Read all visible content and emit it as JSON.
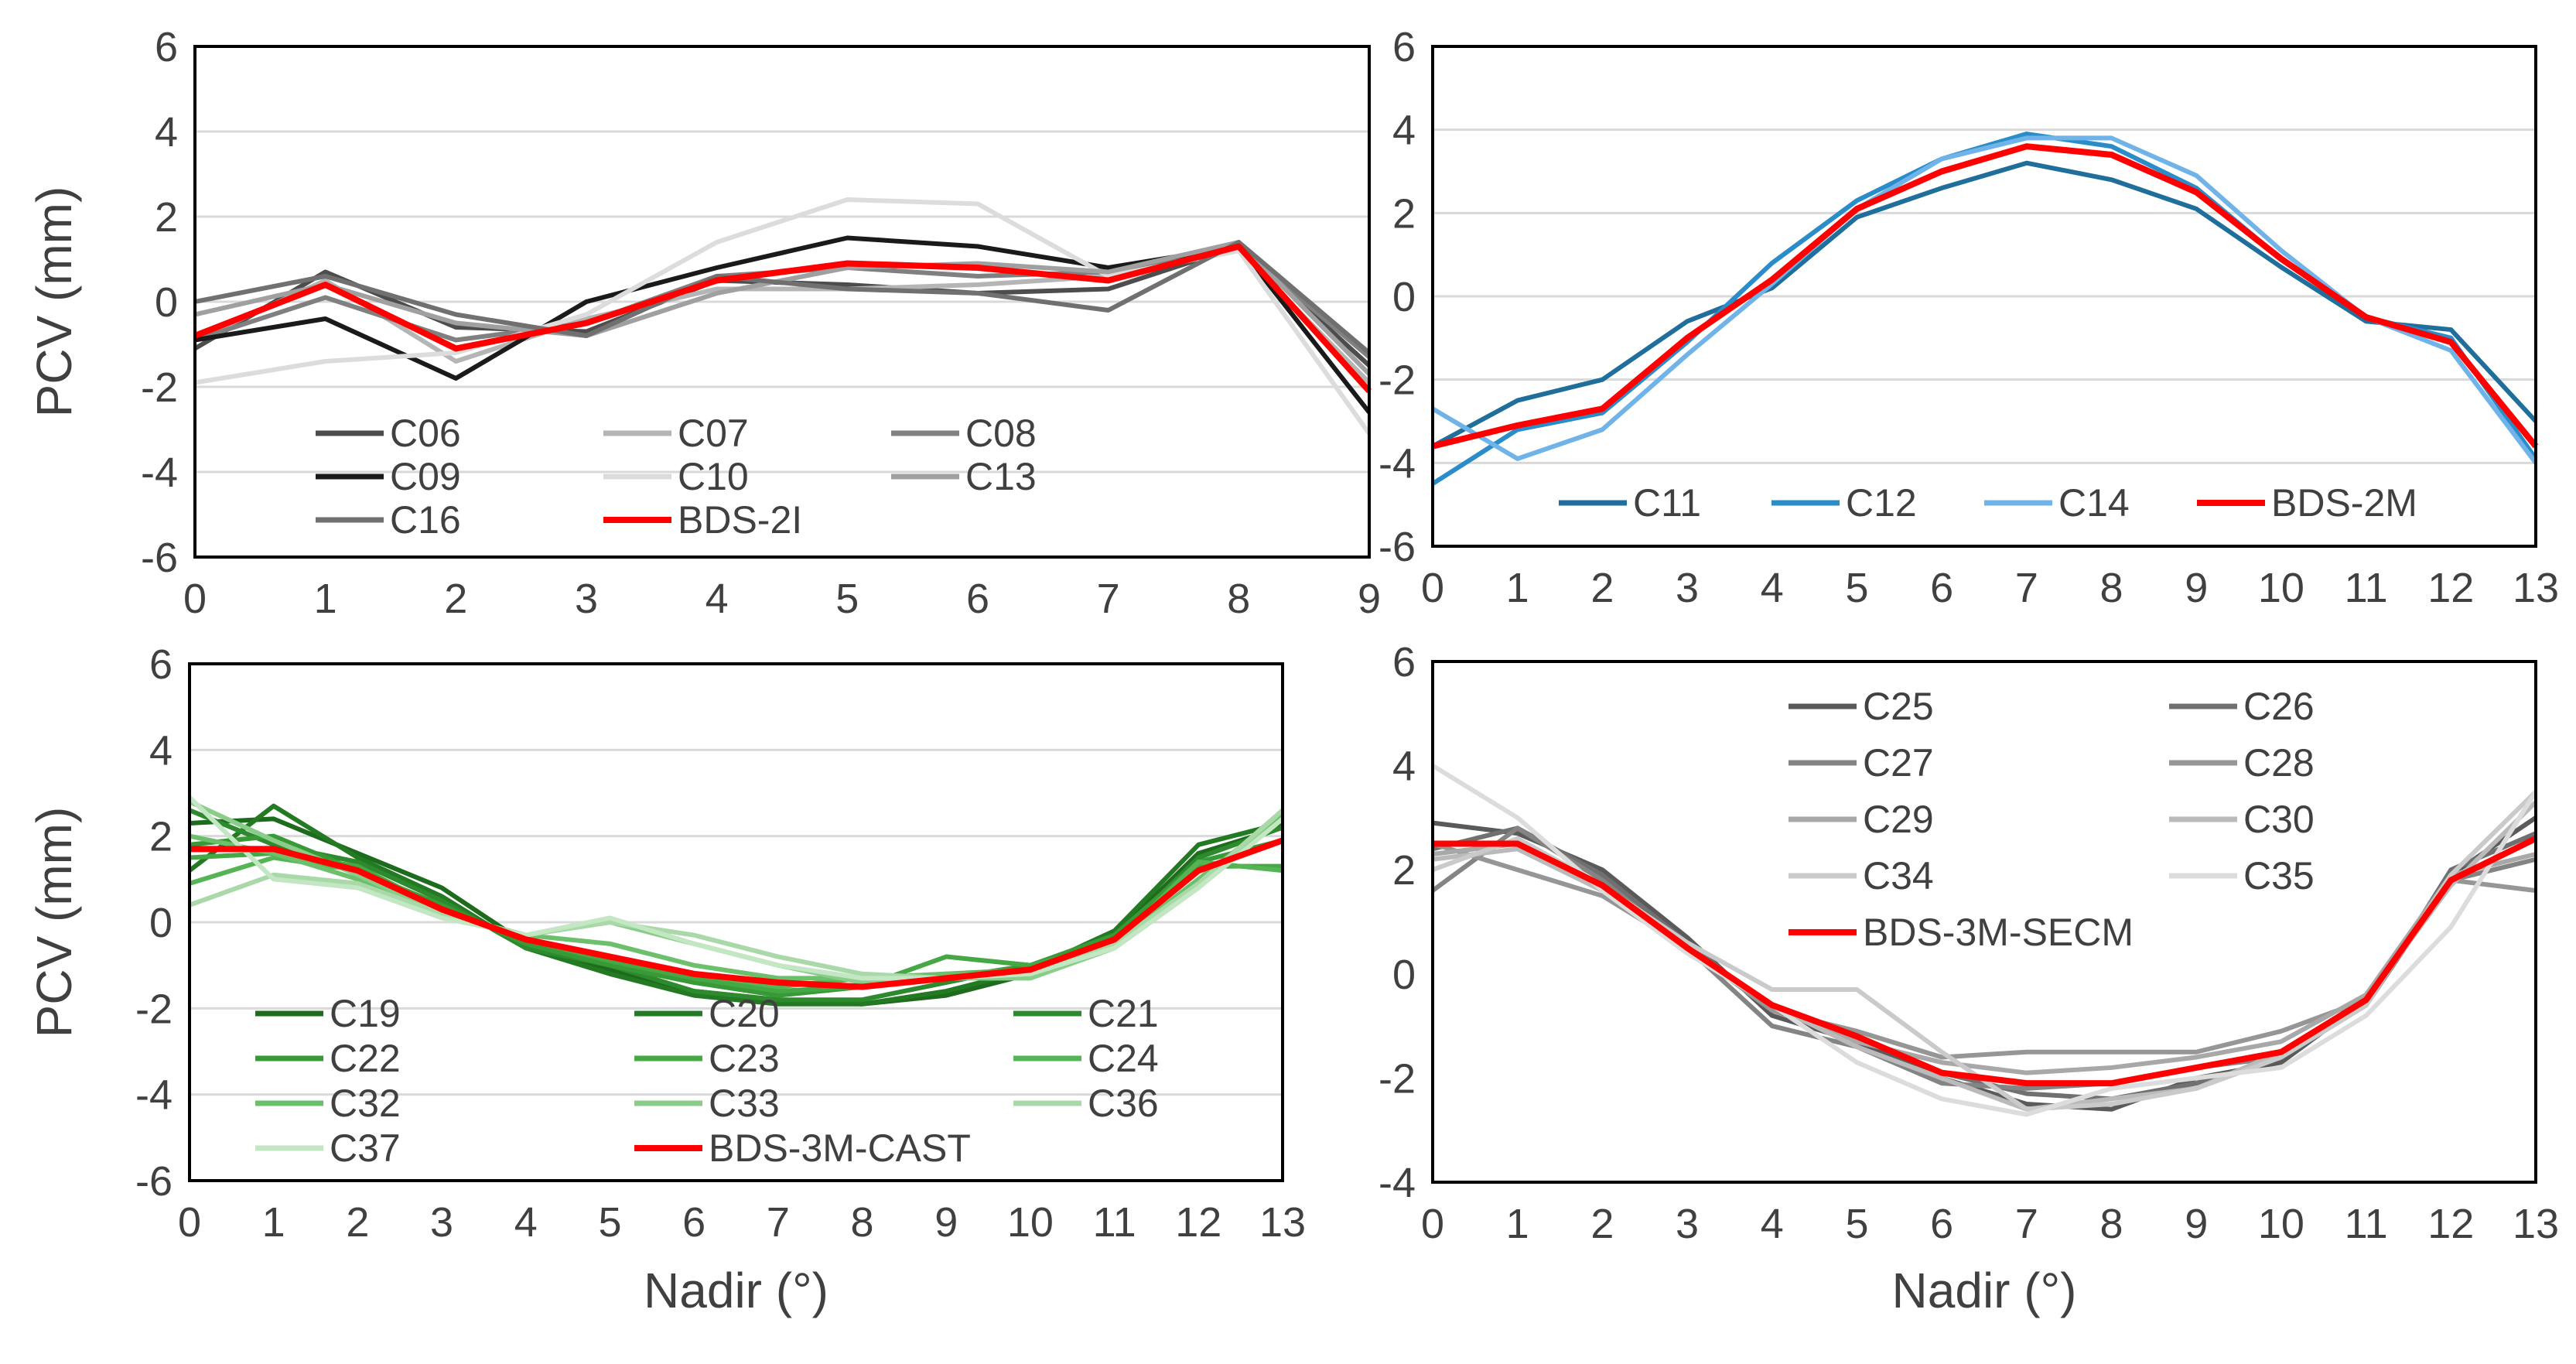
{
  "chart_data": [
    {
      "type": "line",
      "id": "bds2i",
      "ylabel": "PCV (mm)",
      "xlabel": "",
      "ylim": [
        -6,
        6
      ],
      "yticks": [
        -6,
        -4,
        -2,
        0,
        2,
        4,
        6
      ],
      "xlim": [
        0,
        9
      ],
      "xticks": [
        0,
        1,
        2,
        3,
        4,
        5,
        6,
        7,
        8,
        9
      ],
      "grid": true,
      "series": [
        {
          "name": "C06",
          "color": "#4d4d4d",
          "values": [
            -1.1,
            0.7,
            -0.6,
            -0.7,
            0.5,
            0.4,
            0.2,
            0.3,
            1.3,
            -1.5
          ]
        },
        {
          "name": "C07",
          "color": "#b5b5b5",
          "values": [
            -0.9,
            0.5,
            -1.4,
            -0.4,
            0.3,
            0.3,
            0.4,
            0.6,
            1.2,
            -1.9
          ]
        },
        {
          "name": "C08",
          "color": "#808080",
          "values": [
            -0.9,
            0.1,
            -0.9,
            -0.5,
            0.6,
            0.8,
            0.6,
            0.7,
            1.3,
            -1.3
          ]
        },
        {
          "name": "C09",
          "color": "#1a1a1a",
          "values": [
            -0.9,
            -0.4,
            -1.8,
            0.0,
            0.8,
            1.5,
            1.3,
            0.8,
            1.3,
            -2.6
          ]
        },
        {
          "name": "C10",
          "color": "#dcdcdc",
          "values": [
            -1.9,
            -1.4,
            -1.2,
            -0.3,
            1.4,
            2.4,
            2.3,
            0.6,
            1.2,
            -3.1
          ]
        },
        {
          "name": "C13",
          "color": "#a0a0a0",
          "values": [
            -0.3,
            0.4,
            -0.5,
            -0.8,
            0.2,
            0.8,
            0.9,
            0.7,
            1.4,
            -1.7
          ]
        },
        {
          "name": "C16",
          "color": "#707070",
          "values": [
            0.0,
            0.6,
            -0.3,
            -0.8,
            0.6,
            0.3,
            0.2,
            -0.2,
            1.4,
            -1.2
          ]
        },
        {
          "name": "BDS-2I",
          "color": "#ff0000",
          "values": [
            -0.8,
            0.4,
            -1.1,
            -0.5,
            0.5,
            0.9,
            0.8,
            0.5,
            1.3,
            -2.1
          ]
        }
      ]
    },
    {
      "type": "line",
      "id": "bds2m",
      "ylabel": "",
      "xlabel": "",
      "ylim": [
        -6,
        6
      ],
      "yticks": [
        -6,
        -4,
        -2,
        0,
        2,
        4,
        6
      ],
      "xlim": [
        0,
        13
      ],
      "xticks": [
        0,
        1,
        2,
        3,
        4,
        5,
        6,
        7,
        8,
        9,
        10,
        11,
        12,
        13
      ],
      "grid": true,
      "series": [
        {
          "name": "C11",
          "color": "#1f6e9c",
          "values": [
            -3.6,
            -2.5,
            -2.0,
            -0.6,
            0.2,
            1.9,
            2.6,
            3.2,
            2.8,
            2.1,
            0.7,
            -0.6,
            -0.8,
            -3.0
          ]
        },
        {
          "name": "C12",
          "color": "#2a8cc8",
          "values": [
            -4.5,
            -3.2,
            -2.8,
            -1.1,
            0.8,
            2.3,
            3.3,
            3.9,
            3.6,
            2.6,
            0.9,
            -0.5,
            -1.0,
            -3.9
          ]
        },
        {
          "name": "C14",
          "color": "#6fb3e8",
          "values": [
            -2.7,
            -3.9,
            -3.2,
            -1.4,
            0.3,
            2.1,
            3.3,
            3.8,
            3.8,
            2.9,
            1.1,
            -0.5,
            -1.3,
            -4.0
          ]
        },
        {
          "name": "BDS-2M",
          "color": "#ff0000",
          "values": [
            -3.6,
            -3.1,
            -2.7,
            -1.0,
            0.4,
            2.1,
            3.0,
            3.6,
            3.4,
            2.5,
            0.9,
            -0.5,
            -1.1,
            -3.6
          ]
        }
      ]
    },
    {
      "type": "line",
      "id": "bds3m-cast",
      "ylabel": "PCV (mm)",
      "xlabel": "Nadir (°)",
      "ylim": [
        -6,
        6
      ],
      "yticks": [
        -6,
        -4,
        -2,
        0,
        2,
        4,
        6
      ],
      "xlim": [
        0,
        13
      ],
      "xticks": [
        0,
        1,
        2,
        3,
        4,
        5,
        6,
        7,
        8,
        9,
        10,
        11,
        12,
        13
      ],
      "grid": true,
      "series": [
        {
          "name": "C19",
          "color": "#1d6b1d",
          "values": [
            2.3,
            2.4,
            1.6,
            0.8,
            -0.5,
            -1.1,
            -1.6,
            -1.8,
            -1.9,
            -1.7,
            -1.2,
            -0.3,
            1.6,
            2.2
          ]
        },
        {
          "name": "C20",
          "color": "#237a23",
          "values": [
            1.2,
            2.7,
            1.5,
            0.6,
            -0.6,
            -1.2,
            -1.7,
            -1.9,
            -1.9,
            -1.6,
            -1.1,
            -0.2,
            1.8,
            2.3
          ]
        },
        {
          "name": "C21",
          "color": "#2d8a2d",
          "values": [
            2.6,
            1.8,
            1.4,
            0.5,
            -0.6,
            -1.0,
            -1.6,
            -1.8,
            -1.8,
            -1.4,
            -1.0,
            -0.4,
            1.5,
            2.2
          ]
        },
        {
          "name": "C22",
          "color": "#379a37",
          "values": [
            1.8,
            2.0,
            1.2,
            0.4,
            -0.5,
            -1.0,
            -1.4,
            -1.7,
            -1.5,
            -1.3,
            -1.0,
            -0.3,
            1.4,
            1.9
          ]
        },
        {
          "name": "C23",
          "color": "#45a845",
          "values": [
            1.5,
            1.6,
            1.3,
            0.3,
            -0.4,
            -0.9,
            -1.3,
            -1.6,
            -1.5,
            -0.8,
            -1.0,
            -0.5,
            1.3,
            1.3
          ]
        },
        {
          "name": "C24",
          "color": "#55b555",
          "values": [
            0.9,
            1.5,
            1.2,
            0.3,
            -0.4,
            -0.8,
            -1.2,
            -1.5,
            -1.3,
            -1.2,
            -1.1,
            -0.5,
            1.4,
            1.2
          ]
        },
        {
          "name": "C32",
          "color": "#6cc06c",
          "values": [
            2.0,
            1.6,
            1.0,
            0.2,
            -0.3,
            -0.5,
            -1.0,
            -1.3,
            -1.3,
            -1.2,
            -1.2,
            -0.5,
            1.0,
            2.5
          ]
        },
        {
          "name": "C33",
          "color": "#8acc8a",
          "values": [
            2.8,
            1.9,
            1.1,
            0.2,
            -0.3,
            0.0,
            -0.5,
            -1.0,
            -1.4,
            -1.3,
            -1.3,
            -0.6,
            0.8,
            2.6
          ]
        },
        {
          "name": "C36",
          "color": "#a9d9a9",
          "values": [
            0.4,
            1.1,
            0.9,
            0.2,
            -0.3,
            0.0,
            -0.3,
            -0.8,
            -1.2,
            -1.3,
            -1.2,
            -0.5,
            0.9,
            2.6
          ]
        },
        {
          "name": "C37",
          "color": "#c3e6c3",
          "values": [
            2.9,
            1.0,
            0.8,
            0.1,
            -0.3,
            0.1,
            -0.5,
            -1.0,
            -1.3,
            -1.3,
            -1.2,
            -0.6,
            0.8,
            2.4
          ]
        },
        {
          "name": "BDS-3M-CAST",
          "color": "#ff0000",
          "values": [
            1.7,
            1.7,
            1.2,
            0.3,
            -0.4,
            -0.8,
            -1.2,
            -1.4,
            -1.5,
            -1.3,
            -1.1,
            -0.4,
            1.2,
            1.9
          ]
        }
      ]
    },
    {
      "type": "line",
      "id": "bds3m-secm",
      "ylabel": "",
      "xlabel": "Nadir (°)",
      "ylim": [
        -4,
        6
      ],
      "yticks": [
        -4,
        -2,
        0,
        2,
        4,
        6
      ],
      "xlim": [
        0,
        13
      ],
      "xticks": [
        0,
        1,
        2,
        3,
        4,
        5,
        6,
        7,
        8,
        9,
        10,
        11,
        12,
        13
      ],
      "grid": false,
      "series": [
        {
          "name": "C25",
          "color": "#5a5a5a",
          "values": [
            2.9,
            2.7,
            2.0,
            0.7,
            -0.8,
            -1.3,
            -2.0,
            -2.5,
            -2.6,
            -2.0,
            -1.7,
            -0.5,
            1.9,
            3.0
          ]
        },
        {
          "name": "C26",
          "color": "#707070",
          "values": [
            2.4,
            2.8,
            1.9,
            0.6,
            -0.7,
            -1.2,
            -1.9,
            -2.3,
            -2.4,
            -2.1,
            -1.6,
            -0.6,
            2.0,
            2.7
          ]
        },
        {
          "name": "C27",
          "color": "#848484",
          "values": [
            1.6,
            2.8,
            1.8,
            0.5,
            -1.0,
            -1.4,
            -2.1,
            -2.2,
            -2.1,
            -1.8,
            -1.6,
            -0.6,
            1.8,
            2.2
          ]
        },
        {
          "name": "C28",
          "color": "#969696",
          "values": [
            2.5,
            2.0,
            1.5,
            0.5,
            -0.7,
            -1.1,
            -1.6,
            -1.5,
            -1.5,
            -1.5,
            -1.1,
            -0.5,
            1.8,
            1.6
          ]
        },
        {
          "name": "C29",
          "color": "#a8a8a8",
          "values": [
            2.3,
            2.5,
            1.6,
            0.4,
            -0.6,
            -1.3,
            -1.7,
            -1.9,
            -1.8,
            -1.6,
            -1.3,
            -0.4,
            1.9,
            2.3
          ]
        },
        {
          "name": "C30",
          "color": "#bababa",
          "values": [
            2.2,
            2.4,
            1.6,
            0.5,
            -0.6,
            -1.4,
            -2.0,
            -2.6,
            -2.4,
            -2.2,
            -1.5,
            -0.5,
            1.7,
            3.3
          ]
        },
        {
          "name": "C34",
          "color": "#cacaca",
          "values": [
            2.0,
            2.6,
            1.7,
            0.6,
            -0.3,
            -0.3,
            -1.5,
            -2.6,
            -2.5,
            -2.2,
            -1.6,
            -0.6,
            1.9,
            3.5
          ]
        },
        {
          "name": "C35",
          "color": "#dcdcdc",
          "values": [
            4.0,
            3.0,
            1.6,
            0.4,
            -0.6,
            -1.7,
            -2.4,
            -2.7,
            -2.2,
            -2.0,
            -1.8,
            -0.8,
            0.9,
            3.5
          ]
        },
        {
          "name": "BDS-3M-SECM",
          "color": "#ff0000",
          "values": [
            2.5,
            2.5,
            1.7,
            0.5,
            -0.6,
            -1.2,
            -1.9,
            -2.1,
            -2.1,
            -1.8,
            -1.5,
            -0.5,
            1.8,
            2.6
          ]
        }
      ]
    }
  ]
}
